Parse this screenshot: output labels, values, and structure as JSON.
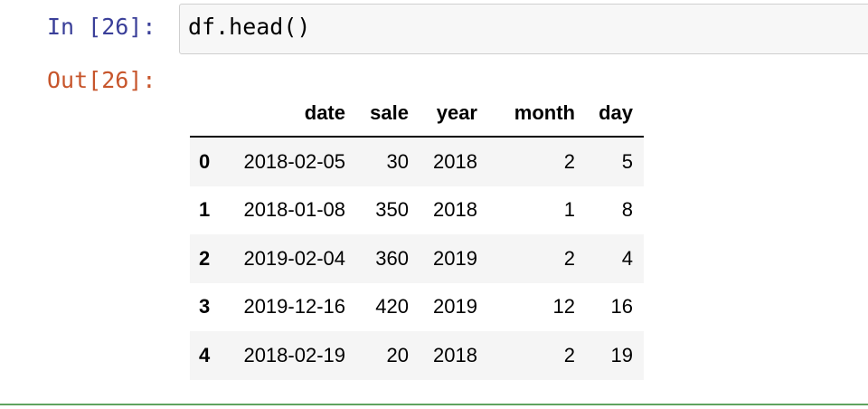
{
  "cell": {
    "in_prompt": "In [26]:",
    "code": "df.head()",
    "out_prompt": "Out[26]:"
  },
  "table": {
    "columns": [
      "date",
      "sale",
      "year",
      "month",
      "day"
    ],
    "rows": [
      {
        "index": "0",
        "date": "2018-02-05",
        "sale": "30",
        "year": "2018",
        "month": "2",
        "day": "5"
      },
      {
        "index": "1",
        "date": "2018-01-08",
        "sale": "350",
        "year": "2018",
        "month": "1",
        "day": "8"
      },
      {
        "index": "2",
        "date": "2019-02-04",
        "sale": "360",
        "year": "2019",
        "month": "2",
        "day": "4"
      },
      {
        "index": "3",
        "date": "2019-12-16",
        "sale": "420",
        "year": "2019",
        "month": "12",
        "day": "16"
      },
      {
        "index": "4",
        "date": "2018-02-19",
        "sale": "20",
        "year": "2018",
        "month": "2",
        "day": "19"
      }
    ]
  },
  "colors": {
    "in_prompt": "#3a3f99",
    "out_prompt": "#c7552b",
    "cell_border": "#cfcfcf",
    "cell_background": "#f7f7f7",
    "striped_row": "#f5f5f5",
    "cell_separator": "#5fa35f"
  }
}
